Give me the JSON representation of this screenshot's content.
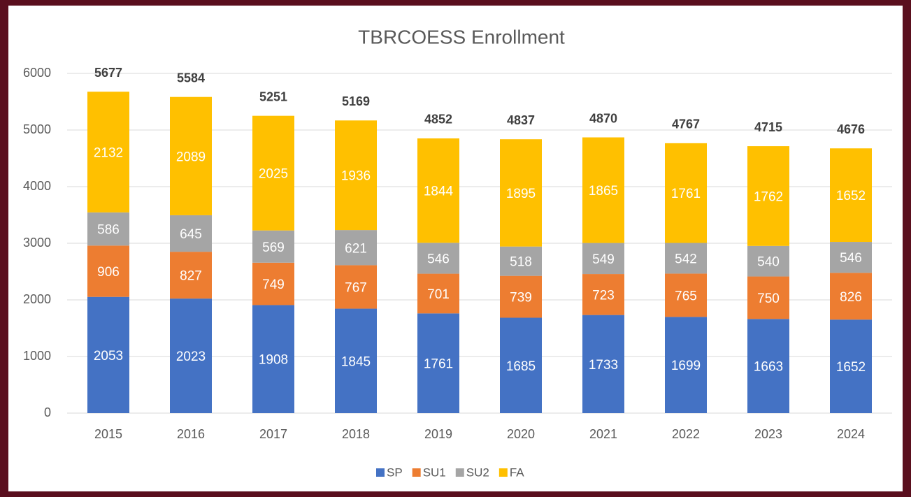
{
  "chart_data": {
    "type": "stacked_bar",
    "title": "TBRCOESS Enrollment",
    "categories": [
      "2015",
      "2016",
      "2017",
      "2018",
      "2019",
      "2020",
      "2021",
      "2022",
      "2023",
      "2024"
    ],
    "series": [
      {
        "name": "SP",
        "color": "#4472c4",
        "values": [
          2053,
          2023,
          1908,
          1845,
          1761,
          1685,
          1733,
          1699,
          1663,
          1652
        ]
      },
      {
        "name": "SU1",
        "color": "#ed7d31",
        "values": [
          906,
          827,
          749,
          767,
          701,
          739,
          723,
          765,
          750,
          826
        ]
      },
      {
        "name": "SU2",
        "color": "#a5a5a5",
        "values": [
          586,
          645,
          569,
          621,
          546,
          518,
          549,
          542,
          540,
          546
        ]
      },
      {
        "name": "FA",
        "color": "#ffc000",
        "values": [
          2132,
          2089,
          2025,
          1936,
          1844,
          1895,
          1865,
          1761,
          1762,
          1652
        ]
      }
    ],
    "totals": [
      5677,
      5584,
      5251,
      5169,
      4852,
      4837,
      4870,
      4767,
      4715,
      4676
    ],
    "ylim": [
      0,
      6000
    ],
    "yticks": [
      0,
      1000,
      2000,
      3000,
      4000,
      5000,
      6000
    ],
    "grid": true,
    "legend": "bottom"
  }
}
